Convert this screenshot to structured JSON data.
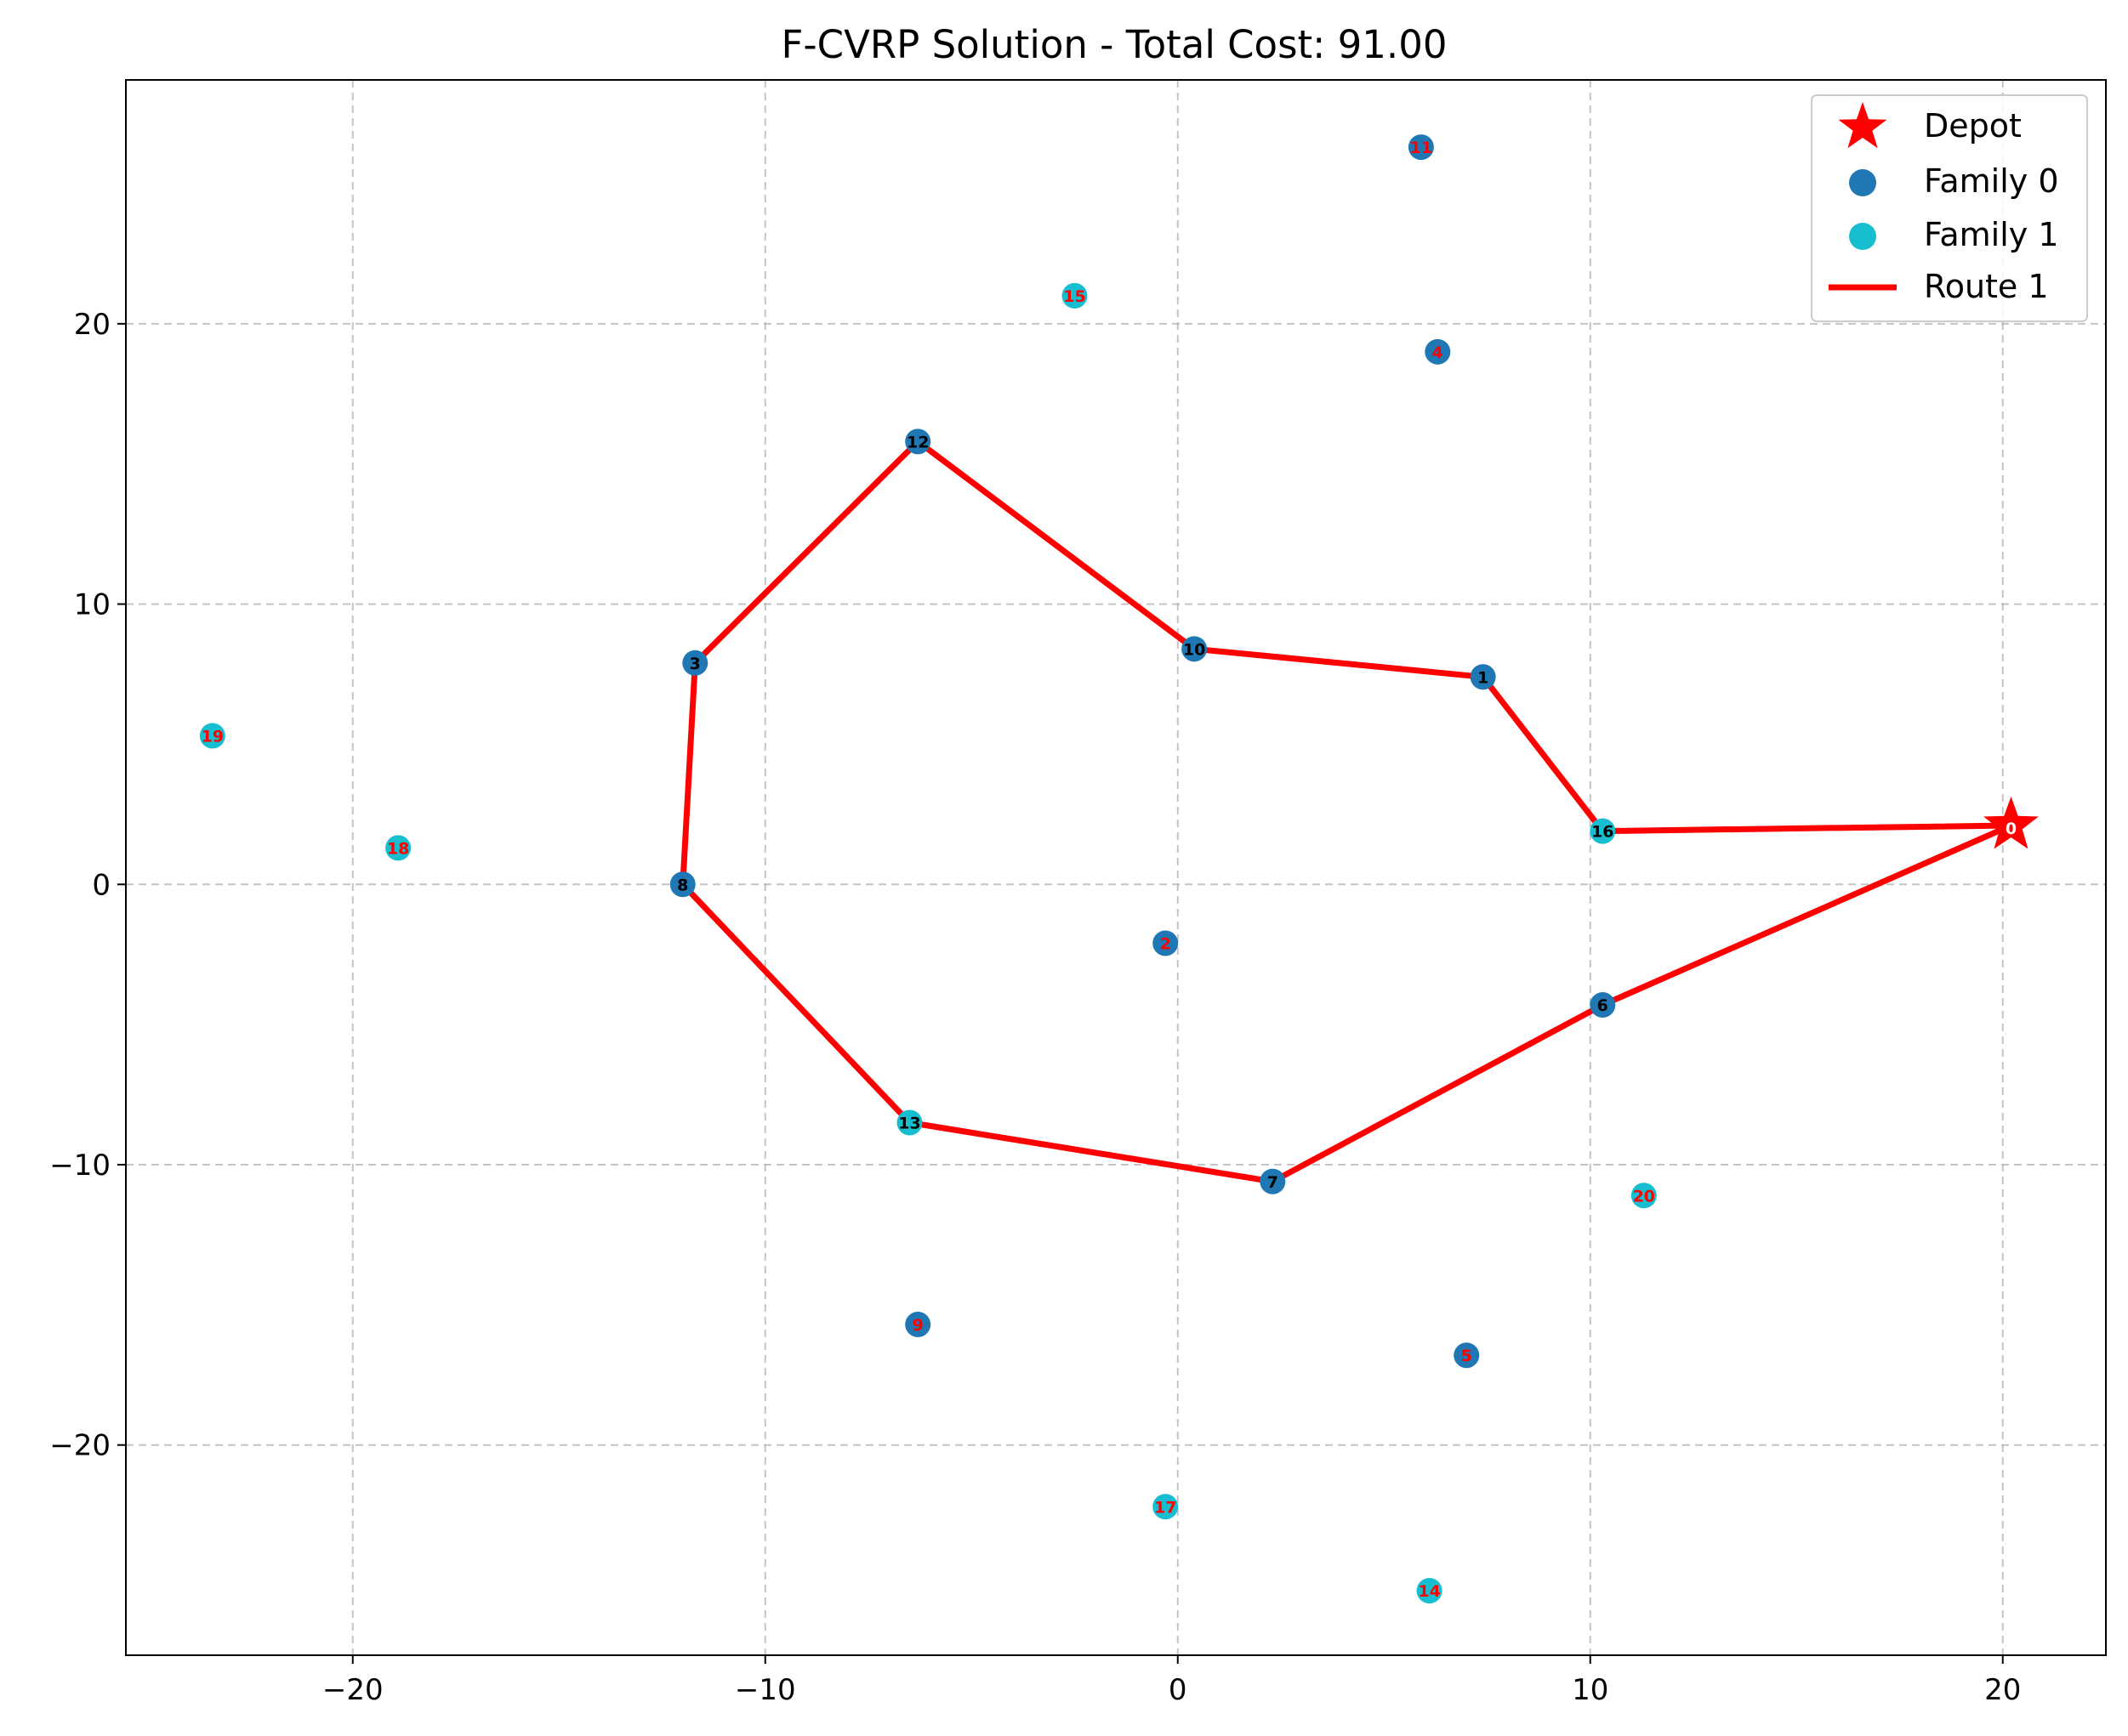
{
  "chart_data": {
    "type": "scatter",
    "title": "F-CVRP Solution - Total Cost: 91.00",
    "xlabel": "",
    "ylabel": "",
    "xlim": [
      -25.5,
      22.5
    ],
    "ylim": [
      -27.5,
      28.7
    ],
    "xticks": [
      -20,
      -10,
      0,
      10,
      20
    ],
    "yticks": [
      -20,
      -10,
      0,
      10,
      20
    ],
    "xtick_labels": [
      "−20",
      "−10",
      "0",
      "10",
      "20"
    ],
    "ytick_labels": [
      "−20",
      "−10",
      "0",
      "10",
      "20"
    ],
    "grid": true,
    "legend_position": "top-right",
    "colors": {
      "depot": "#ff0000",
      "family_0": "#1f77b4",
      "family_1": "#17becf",
      "route": "#ff0000",
      "visited_label": "#000000",
      "unvisited_label": "#ff0000",
      "depot_label": "#ffffff"
    },
    "depot": {
      "id": "0",
      "x": 20.2,
      "y": 2.1,
      "name": "Depot"
    },
    "series": [
      {
        "name": "Family 0",
        "points": [
          {
            "id": "1",
            "x": 7.4,
            "y": 7.4
          },
          {
            "id": "2",
            "x": -0.3,
            "y": -2.1
          },
          {
            "id": "3",
            "x": -11.7,
            "y": 7.9
          },
          {
            "id": "4",
            "x": 6.3,
            "y": 19.0
          },
          {
            "id": "5",
            "x": 7.0,
            "y": -16.8
          },
          {
            "id": "6",
            "x": 10.3,
            "y": -4.3
          },
          {
            "id": "7",
            "x": 2.3,
            "y": -10.6
          },
          {
            "id": "8",
            "x": -12.0,
            "y": 0.0
          },
          {
            "id": "9",
            "x": -6.3,
            "y": -15.7
          },
          {
            "id": "10",
            "x": 0.4,
            "y": 8.4
          },
          {
            "id": "11",
            "x": 5.9,
            "y": 26.3
          },
          {
            "id": "12",
            "x": -6.3,
            "y": 15.8
          }
        ]
      },
      {
        "name": "Family 1",
        "points": [
          {
            "id": "13",
            "x": -6.5,
            "y": -8.5
          },
          {
            "id": "14",
            "x": 6.1,
            "y": -25.2
          },
          {
            "id": "15",
            "x": -2.5,
            "y": 21.0
          },
          {
            "id": "16",
            "x": 10.3,
            "y": 1.9
          },
          {
            "id": "17",
            "x": -0.3,
            "y": -22.2
          },
          {
            "id": "18",
            "x": -18.9,
            "y": 1.3
          },
          {
            "id": "19",
            "x": -23.4,
            "y": 5.3
          },
          {
            "id": "20",
            "x": 11.3,
            "y": -11.1
          }
        ]
      }
    ],
    "routes": [
      {
        "name": "Route 1",
        "sequence": [
          "0",
          "16",
          "1",
          "10",
          "12",
          "3",
          "8",
          "13",
          "7",
          "6",
          "0"
        ]
      }
    ],
    "legend": [
      "Depot",
      "Family 0",
      "Family 1",
      "Route 1"
    ]
  }
}
